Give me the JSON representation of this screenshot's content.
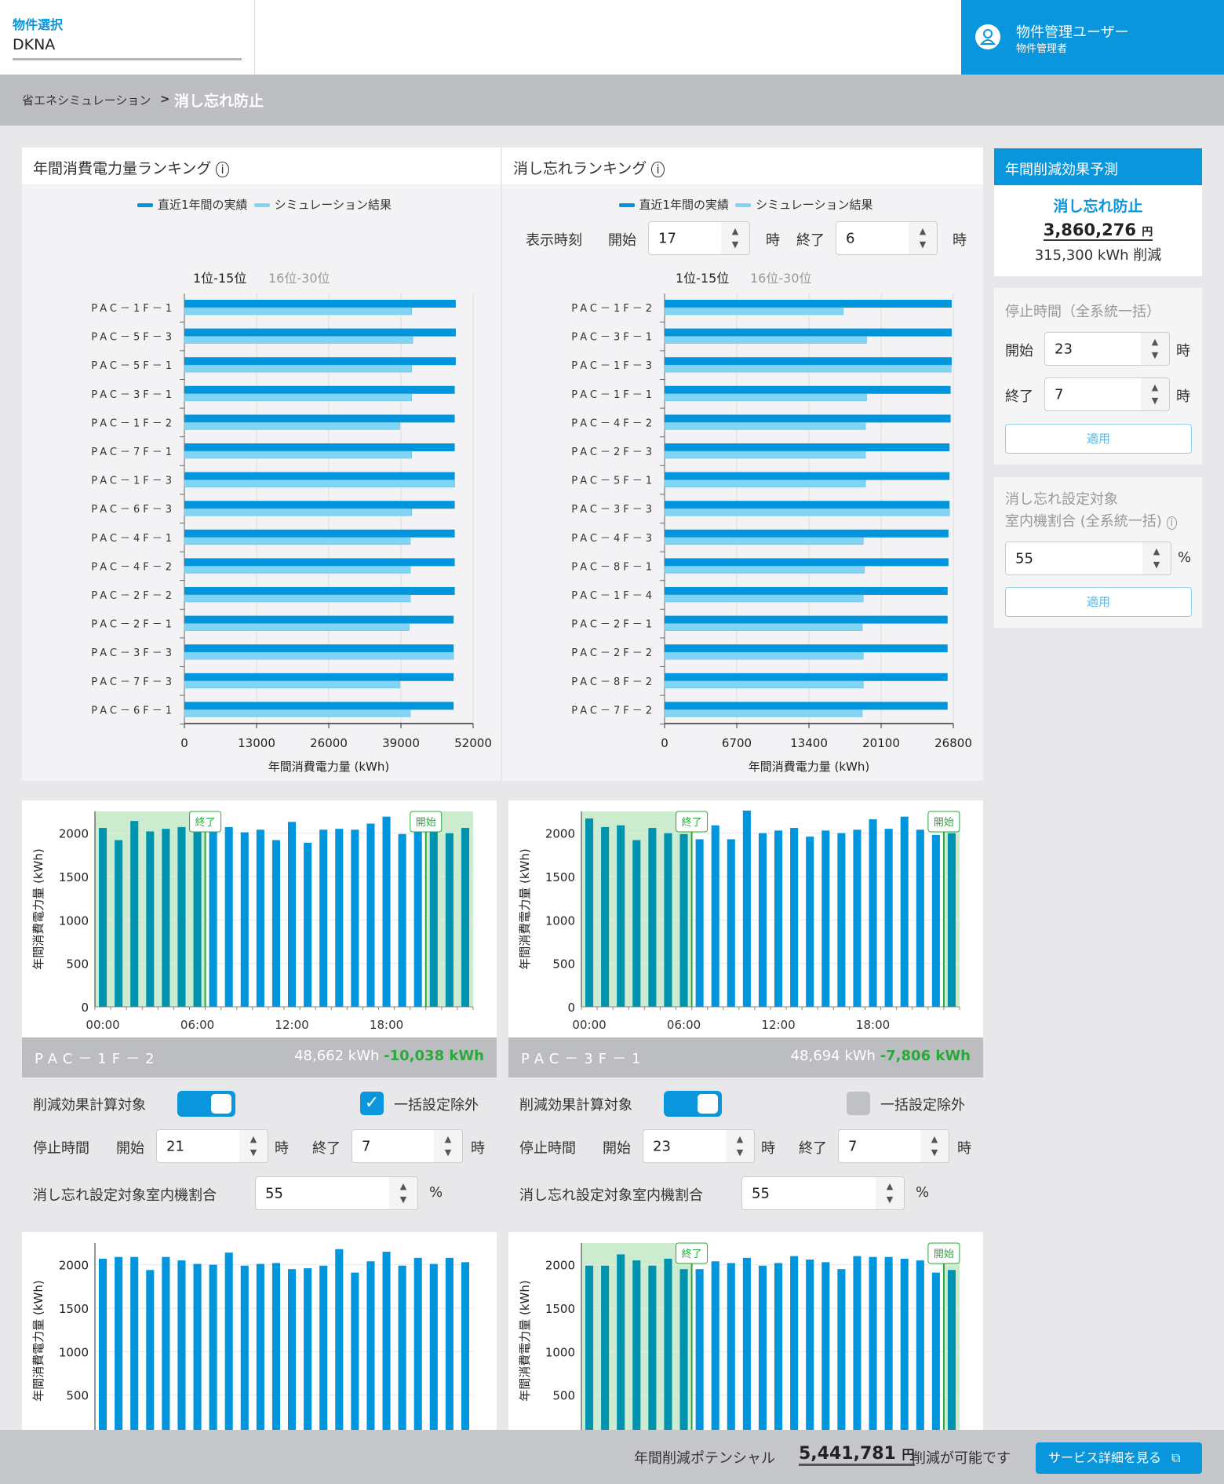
{
  "header": {
    "property_label": "物件選択",
    "property_value": "DKNA",
    "user_name": "物件管理ユーザー",
    "user_role": "物件管理者"
  },
  "breadcrumb": {
    "parent": "省エネシミュレーション",
    "sep": ">",
    "current": "消し忘れ防止"
  },
  "ranking_power": {
    "title": "年間消費電力量ランキング",
    "legend_actual": "直近1年間の実績",
    "legend_sim": "シミュレーション結果",
    "tab_active": "1位-15位",
    "tab_other": "16位-30位"
  },
  "ranking_forget": {
    "title": "消し忘れランキング",
    "legend_actual": "直近1年間の実績",
    "legend_sim": "シミュレーション結果",
    "tab_active": "1位-15位",
    "tab_other": "16位-30位",
    "time_label": "表示時刻",
    "start_label": "開始",
    "start_value": "17",
    "end_label": "終了",
    "end_value": "6",
    "hour_unit": "時"
  },
  "sidebar": {
    "forecast_title": "年間削減効果予測",
    "forecast_name": "消し忘れ防止",
    "forecast_amount": "3,860,276",
    "yen": "円",
    "forecast_kwh": "315,300 kWh 削減",
    "stop_title": "停止時間（全系統一括）",
    "start_label": "開始",
    "start_value": "23",
    "end_label": "終了",
    "end_value": "7",
    "hour_unit": "時",
    "apply": "適用",
    "ratio_title_1": "消し忘れ設定対象",
    "ratio_title_2": "室内機割合 (全系統一括)",
    "ratio_value": "55",
    "percent": "%",
    "apply2": "適用"
  },
  "units": [
    {
      "name": "PAC－1F－2",
      "kwh": "48,662 kWh",
      "diff": "-10,038 kWh",
      "calc_label": "削減効果計算対象",
      "calc_on": true,
      "exclude_label": "一括設定除外",
      "exclude_checked": true,
      "stop_label": "停止時間",
      "start_label": "開始",
      "start": "21",
      "end_label": "終了",
      "end": "7",
      "hour_unit": "時",
      "ratio_label": "消し忘れ設定対象室内機割合",
      "ratio": "55",
      "percent": "%"
    },
    {
      "name": "PAC－3F－1",
      "kwh": "48,694 kWh",
      "diff": "-7,806 kWh",
      "calc_label": "削減効果計算対象",
      "calc_on": true,
      "exclude_label": "一括設定除外",
      "exclude_checked": false,
      "stop_label": "停止時間",
      "start_label": "開始",
      "start": "23",
      "end_label": "終了",
      "end": "7",
      "hour_unit": "時",
      "ratio_label": "消し忘れ設定対象室内機割合",
      "ratio": "55",
      "percent": "%"
    }
  ],
  "footer": {
    "label": "年間削減ポテンシャル",
    "amount": "5,441,781",
    "yen": "円",
    "suffix": "削減が可能です",
    "button": "サービス詳細を見る"
  },
  "colors": {
    "accent": "#0a96dc",
    "actual": "#0095dd",
    "sim": "#82d4f5",
    "shaded_bar": "#0093b0",
    "shade": "#cdeccf",
    "green": "#2aa93a"
  },
  "chart_data": [
    {
      "type": "bar",
      "orientation": "horizontal",
      "title": "年間消費電力量ランキング",
      "xlabel": "年間消費電力量 (kWh)",
      "xlim": [
        0,
        52000
      ],
      "xticks": [
        0,
        13000,
        26000,
        39000,
        52000
      ],
      "categories": [
        "PAC－1F－1",
        "PAC－5F－3",
        "PAC－5F－1",
        "PAC－3F－1",
        "PAC－1F－2",
        "PAC－7F－1",
        "PAC－1F－3",
        "PAC－6F－3",
        "PAC－4F－1",
        "PAC－4F－2",
        "PAC－2F－2",
        "PAC－2F－1",
        "PAC－3F－3",
        "PAC－7F－3",
        "PAC－6F－1"
      ],
      "series": [
        {
          "name": "直近1年間の実績",
          "values": [
            48880,
            48880,
            48880,
            48690,
            48690,
            48690,
            48690,
            48690,
            48690,
            48690,
            48690,
            48490,
            48490,
            48490,
            48490
          ]
        },
        {
          "name": "シミュレーション結果",
          "values": [
            40940,
            41130,
            40940,
            40940,
            38800,
            40940,
            48690,
            40940,
            40700,
            40700,
            40700,
            40500,
            48490,
            38800,
            40700
          ]
        }
      ]
    },
    {
      "type": "bar",
      "orientation": "horizontal",
      "title": "消し忘れランキング",
      "xlabel": "年間消費電力量 (kWh)",
      "xlim": [
        0,
        26800
      ],
      "xticks": [
        0,
        6700,
        13400,
        20100,
        26800
      ],
      "categories": [
        "PAC－1F－2",
        "PAC－3F－1",
        "PAC－1F－3",
        "PAC－1F－1",
        "PAC－4F－2",
        "PAC－2F－3",
        "PAC－5F－1",
        "PAC－3F－3",
        "PAC－4F－3",
        "PAC－8F－1",
        "PAC－1F－4",
        "PAC－2F－1",
        "PAC－2F－2",
        "PAC－8F－2",
        "PAC－7F－2"
      ],
      "series": [
        {
          "name": "直近1年間の実績",
          "values": [
            26650,
            26650,
            26650,
            26550,
            26550,
            26450,
            26450,
            26450,
            26350,
            26350,
            26270,
            26270,
            26270,
            26270,
            26270
          ]
        },
        {
          "name": "シミュレーション結果",
          "values": [
            16590,
            18750,
            26600,
            18750,
            18650,
            18650,
            18650,
            26450,
            18450,
            18550,
            18450,
            18350,
            18450,
            18450,
            18350
          ]
        }
      ]
    },
    {
      "type": "bar",
      "ylabel": "年間消費電力量 (kWh)",
      "ylim": [
        0,
        2250
      ],
      "yticks": [
        0,
        500,
        1000,
        1500,
        2000
      ],
      "xticks": [
        "00:00",
        "06:00",
        "12:00",
        "18:00"
      ],
      "stop_start": 21,
      "stop_end": 7,
      "start_tag": "開始",
      "end_tag": "終了",
      "values": [
        2060,
        1920,
        2140,
        2020,
        2050,
        2070,
        2010,
        2040,
        2070,
        2010,
        2040,
        1920,
        2130,
        1890,
        2040,
        2050,
        2040,
        2110,
        2190,
        1990,
        2020,
        2030,
        2000,
        2060
      ]
    },
    {
      "type": "bar",
      "ylabel": "年間消費電力量 (kWh)",
      "ylim": [
        0,
        2250
      ],
      "yticks": [
        0,
        500,
        1000,
        1500,
        2000
      ],
      "xticks": [
        "00:00",
        "06:00",
        "12:00",
        "18:00"
      ],
      "stop_start": 23,
      "stop_end": 7,
      "start_tag": "開始",
      "end_tag": "終了",
      "values": [
        2170,
        2070,
        2090,
        1920,
        2060,
        2000,
        1990,
        1930,
        2090,
        1930,
        2260,
        2000,
        2030,
        2060,
        1960,
        2030,
        2000,
        2040,
        2160,
        2050,
        2190,
        2040,
        1980,
        2000
      ]
    },
    {
      "type": "bar",
      "ylabel": "年間消費電力量 (kWh)",
      "ylim": [
        0,
        2250
      ],
      "yticks": [
        500,
        1000,
        1500,
        2000
      ],
      "values": [
        2070,
        2090,
        2090,
        1940,
        2090,
        2050,
        2010,
        2000,
        2140,
        1990,
        2010,
        2020,
        1950,
        1960,
        1990,
        2180,
        1910,
        2040,
        2150,
        1990,
        2080,
        2010,
        2080,
        2030
      ]
    },
    {
      "type": "bar",
      "ylabel": "年間消費電力量 (kWh)",
      "ylim": [
        0,
        2250
      ],
      "yticks": [
        500,
        1000,
        1500,
        2000
      ],
      "stop_start": 23,
      "stop_end": 7,
      "start_tag": "開始",
      "end_tag": "終了",
      "values": [
        1990,
        1990,
        2120,
        2050,
        1990,
        2070,
        1950,
        1950,
        2040,
        2020,
        2080,
        1990,
        2020,
        2100,
        2060,
        2030,
        1950,
        2100,
        2090,
        2090,
        2070,
        2050,
        1910,
        1940
      ]
    }
  ]
}
